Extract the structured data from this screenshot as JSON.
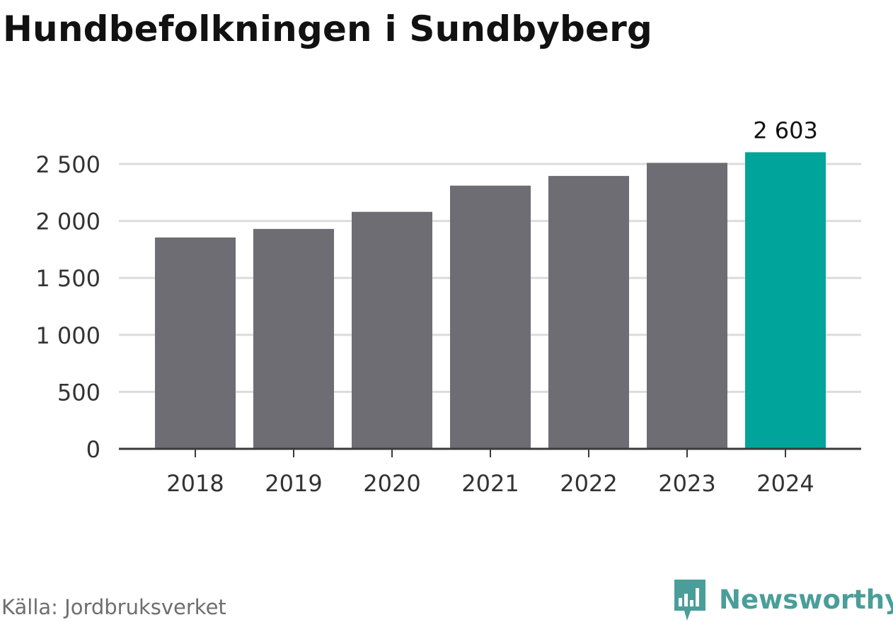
{
  "title": "Hundbefolkningen i Sundbyberg",
  "source": "Källa: Jordbruksverket",
  "brand": {
    "name": "Newsworthy",
    "logo_icon": "newsworthy-bar-chart-icon",
    "color": "#4a9e99"
  },
  "chart_data": {
    "type": "bar",
    "title": "Hundbefolkningen i Sundbyberg",
    "xlabel": "",
    "ylabel": "",
    "categories": [
      "2018",
      "2019",
      "2020",
      "2021",
      "2022",
      "2023",
      "2024"
    ],
    "values": [
      1855,
      1930,
      2080,
      2310,
      2395,
      2510,
      2603
    ],
    "ylim": [
      0,
      2500
    ],
    "yticks": [
      0,
      500,
      1000,
      1500,
      2000,
      2500
    ],
    "ytick_labels": [
      "0",
      "500",
      "1 000",
      "1 500",
      "2 000",
      "2 500"
    ],
    "grid": true,
    "legend": "none",
    "highlight": {
      "category": "2024",
      "label": "2 603"
    },
    "colors": {
      "bar": "#6e6d73",
      "highlight": "#00a49a",
      "grid": "#dcdcdc",
      "axis": "#3a3a3a"
    }
  }
}
